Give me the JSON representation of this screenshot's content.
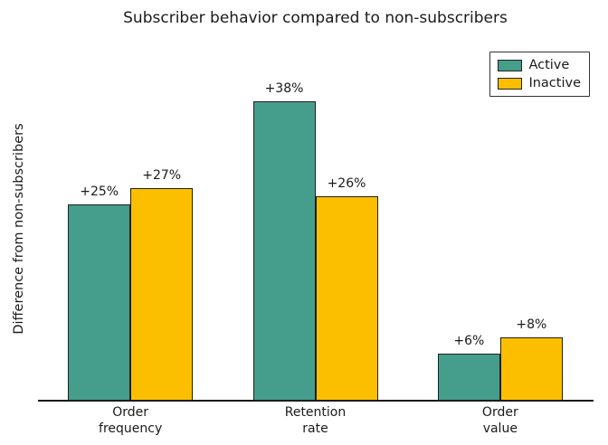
{
  "chart_data": {
    "type": "bar",
    "title": "Subscriber behavior compared to non-subscribers",
    "ylabel": "Difference from non-subscribers",
    "xlabel": "",
    "categories": [
      "Order\nfrequency",
      "Retention\nrate",
      "Order\nvalue"
    ],
    "series": [
      {
        "name": "Active",
        "color": "#459e8c",
        "values": [
          25,
          38,
          6
        ],
        "labels": [
          "+25%",
          "+38%",
          "+6%"
        ]
      },
      {
        "name": "Inactive",
        "color": "#fcbf00",
        "values": [
          27,
          26,
          8
        ],
        "labels": [
          "+27%",
          "+26%",
          "+8%"
        ]
      }
    ],
    "ylim": [
      0,
      40
    ],
    "grid": false,
    "y_ticks_visible": false,
    "legend_position": "upper right",
    "bar_edge_color": "#1f1f1f",
    "spines": [
      "bottom"
    ]
  }
}
